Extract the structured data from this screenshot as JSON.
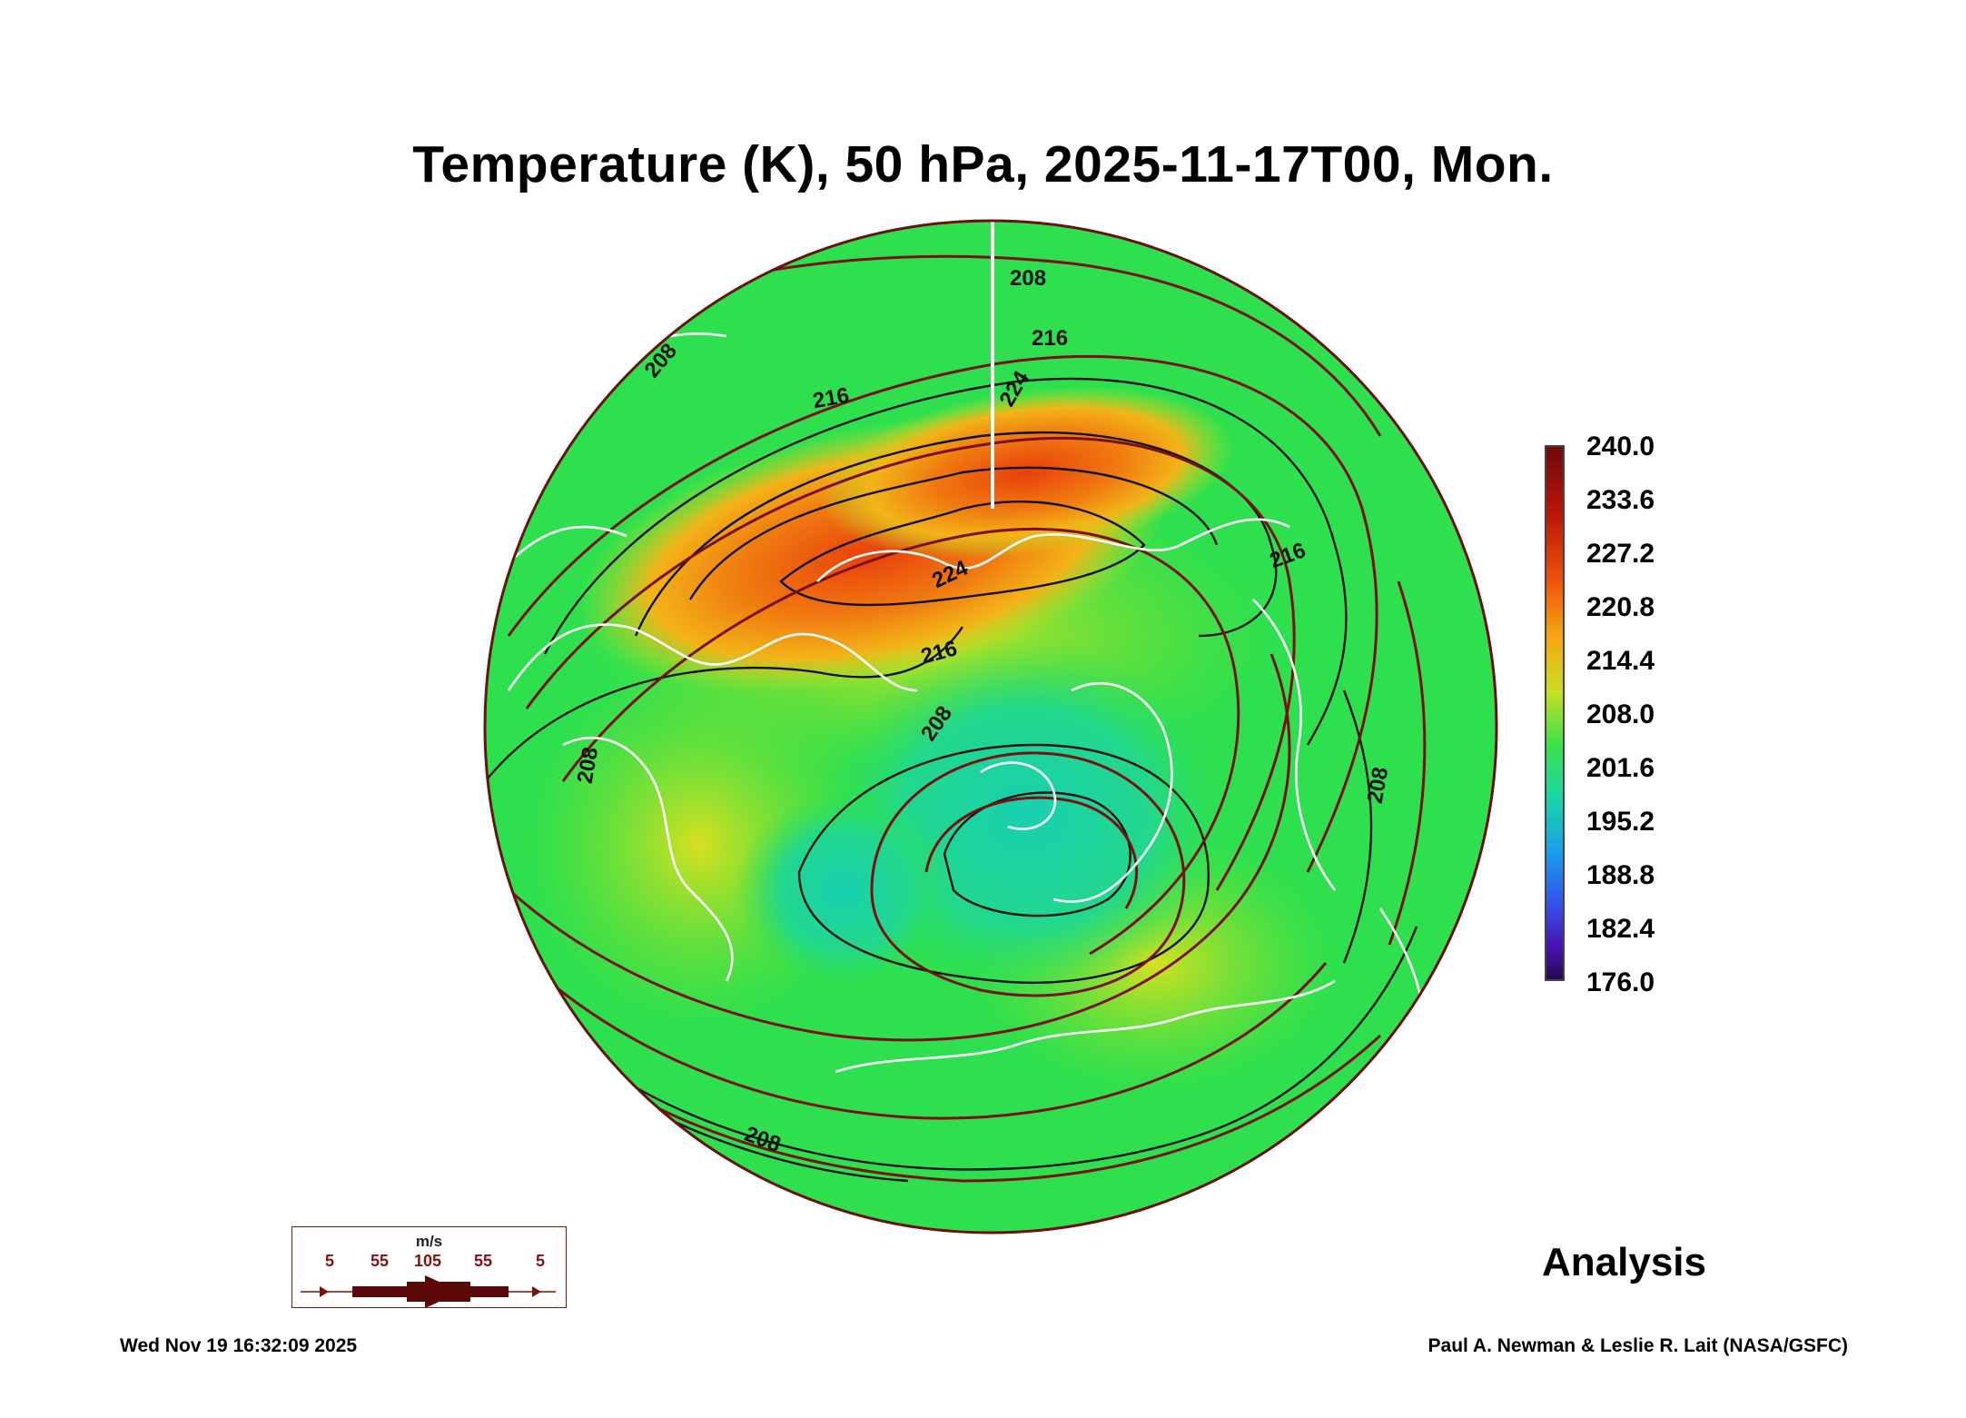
{
  "title": "Temperature (K), 50 hPa, 2025-11-17T00, Mon.",
  "colorbar": {
    "ticks": [
      "240.0",
      "233.6",
      "227.2",
      "220.8",
      "214.4",
      "208.0",
      "201.6",
      "195.2",
      "188.8",
      "182.4",
      "176.0"
    ],
    "min": 176.0,
    "max": 240.0,
    "colors": [
      "#2a0a5e",
      "#4a12b0",
      "#2a5ff0",
      "#1aa8e6",
      "#20d6a0",
      "#22e06a",
      "#7ee22c",
      "#d6de1c",
      "#f2a010",
      "#f05a0a",
      "#c01a0a",
      "#6e0a0a"
    ]
  },
  "contour_labels": [
    "208",
    "216",
    "224",
    "224",
    "216",
    "216",
    "208",
    "208",
    "208",
    "216",
    "208",
    "208"
  ],
  "wind_legend": {
    "unit": "m/s",
    "values": [
      "5",
      "55",
      "105",
      "55",
      "5"
    ]
  },
  "analysis_label": "Analysis",
  "timestamp": "Wed Nov 19 16:32:09 2025",
  "credit": "Paul A. Newman & Leslie R. Lait (NASA/GSFC)",
  "colors": {
    "background_field": "#2ee04e",
    "warm_core": "#f05a12",
    "cold_core": "#22d8a0",
    "streamline": "#7a1010",
    "contour": "#111111",
    "coastline": "#ffffff"
  }
}
